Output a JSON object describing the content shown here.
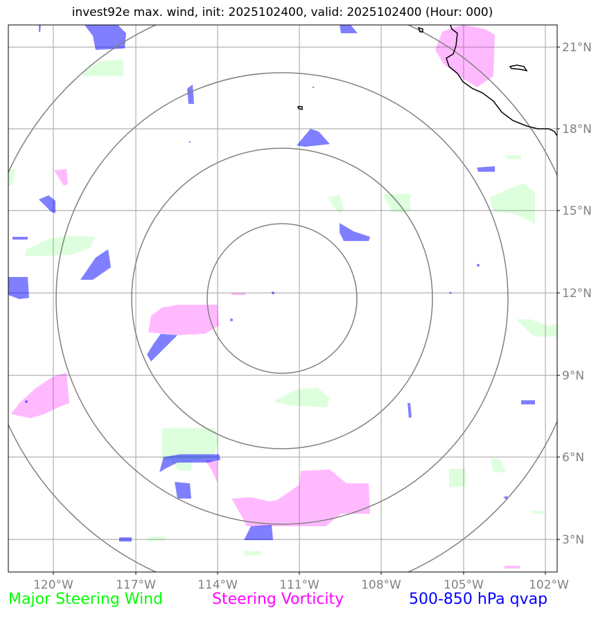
{
  "title": "invest92e max. wind, init: 2025102400, valid: 2025102400 (Hour: 000)",
  "lon_labels": [
    "120°W",
    "117°W",
    "114°W",
    "111°W",
    "108°W",
    "105°W",
    "102°W"
  ],
  "lat_labels": [
    "21°N",
    "18°N",
    "15°N",
    "12°N",
    "9°N",
    "6°N",
    "3°N"
  ],
  "legend": {
    "wind": "Major Steering Wind",
    "vorticity": "Steering Vorticity",
    "qvap": "500-850 hPa qvap"
  },
  "colors": {
    "wind": "#00ff00",
    "vorticity": "#ff00ff",
    "qvap": "#0000ff",
    "grid": "#b0b0b0",
    "rings": "#808080",
    "coast": "#000000",
    "tick_label": "#808080"
  },
  "map": {
    "center": "111.7°W, 12°N",
    "range_rings": 4
  }
}
